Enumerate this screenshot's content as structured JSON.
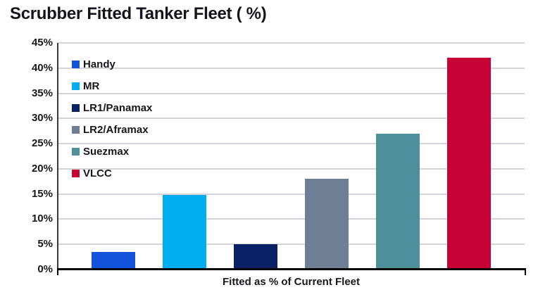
{
  "title": "Scrubber Fitted Tanker Fleet ( %)",
  "chart_data": {
    "type": "bar",
    "categories": [
      "Fitted as % of Current Fleet"
    ],
    "series": [
      {
        "name": "Handy",
        "values": [
          3.5
        ],
        "color": "#1353dc"
      },
      {
        "name": "MR",
        "values": [
          14.8
        ],
        "color": "#00aeef"
      },
      {
        "name": "LR1/Panamax",
        "values": [
          5.1
        ],
        "color": "#0b2165"
      },
      {
        "name": "LR2/Aframax",
        "values": [
          18.1
        ],
        "color": "#6e7e95"
      },
      {
        "name": "Suezmax",
        "values": [
          27.0
        ],
        "color": "#4f8f99"
      },
      {
        "name": "VLCC",
        "values": [
          42.0
        ],
        "color": "#c70234"
      }
    ],
    "xlabel": "Fitted as % of Current Fleet",
    "ylabel": "",
    "ylim": [
      0,
      45
    ],
    "ytick_step": 5,
    "ytick_labels": [
      "0%",
      "5%",
      "10%",
      "15%",
      "20%",
      "25%",
      "30%",
      "35%",
      "40%",
      "45%"
    ],
    "grid": true,
    "legend_position": "top-left-inside"
  },
  "colors": {
    "gridline": "#d6d2d9",
    "y_axis_line": "#36363c",
    "x_axis_line": "#000000",
    "text": "#17171f"
  }
}
